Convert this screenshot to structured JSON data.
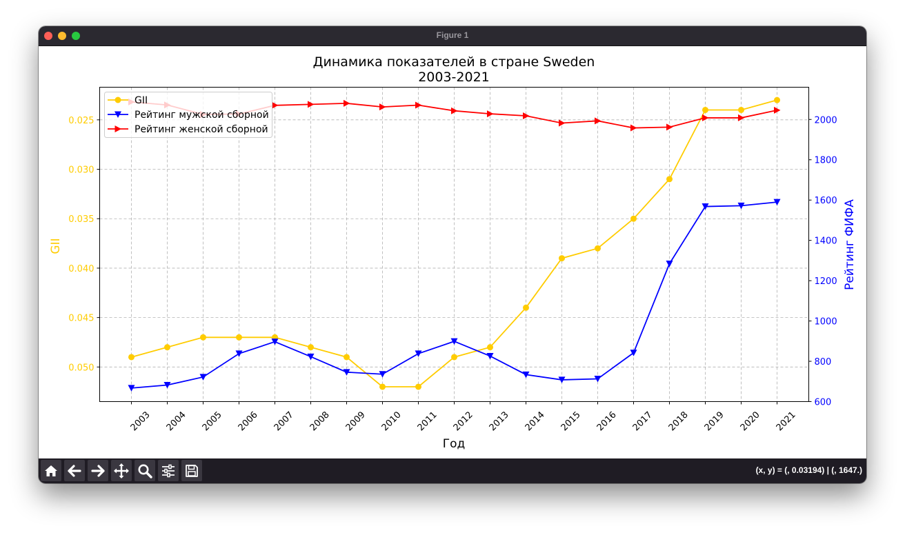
{
  "window": {
    "title": "Figure 1"
  },
  "toolbar": {
    "buttons": [
      "home-icon",
      "back-arrow-icon",
      "forward-arrow-icon",
      "pan-icon",
      "zoom-icon",
      "configure-subplots-icon",
      "save-icon"
    ],
    "coords": "(x, y) = (, 0.03194) | (, 1647.)"
  },
  "chart_data": {
    "type": "line",
    "title": "Динамика показателей в стране Sweden",
    "subtitle": "2003-2021",
    "xlabel": "Год",
    "ylabel_left": "GII",
    "ylabel_right": "Рейтинг ФИФА",
    "categories": [
      "2003",
      "2004",
      "2005",
      "2006",
      "2007",
      "2008",
      "2009",
      "2010",
      "2011",
      "2012",
      "2013",
      "2014",
      "2015",
      "2016",
      "2017",
      "2018",
      "2019",
      "2020",
      "2021"
    ],
    "left_axis": {
      "inverted": true,
      "ylim": [
        0.0535,
        0.0217
      ],
      "ticks": [
        0.025,
        0.03,
        0.035,
        0.04,
        0.045,
        0.05
      ],
      "tick_labels": [
        "0.025",
        "0.030",
        "0.035",
        "0.040",
        "0.045",
        "0.050"
      ],
      "color": "#ffcc00"
    },
    "right_axis": {
      "ylim": [
        600,
        2160
      ],
      "ticks": [
        600,
        800,
        1000,
        1200,
        1400,
        1600,
        1800,
        2000
      ],
      "tick_labels": [
        "600",
        "800",
        "1000",
        "1200",
        "1400",
        "1600",
        "1800",
        "2000"
      ],
      "color": "#0000ff"
    },
    "grid": true,
    "legend_position": "top-left",
    "series": [
      {
        "name": "GII",
        "axis": "left",
        "color": "#ffcc00",
        "marker": "circle",
        "values": [
          0.049,
          0.048,
          0.047,
          0.047,
          0.047,
          0.048,
          0.049,
          0.052,
          0.052,
          0.049,
          0.048,
          0.044,
          0.039,
          0.038,
          0.035,
          0.031,
          0.024,
          0.024,
          0.023
        ]
      },
      {
        "name": "Рейтинг мужской сборной",
        "axis": "right",
        "color": "#0000ff",
        "marker": "triangle-down",
        "values": [
          667,
          682,
          722,
          838,
          897,
          823,
          746,
          736,
          838,
          899,
          826,
          734,
          708,
          713,
          842,
          1284,
          1568,
          1572,
          1590
        ]
      },
      {
        "name": "Рейтинг женской сборной",
        "axis": "right",
        "color": "#ff0000",
        "marker": "triangle-right",
        "values": [
          2087,
          2072,
          2025,
          2027,
          2070,
          2075,
          2080,
          2062,
          2071,
          2043,
          2028,
          2018,
          1982,
          1993,
          1958,
          1962,
          2008,
          2008,
          2046
        ]
      }
    ]
  }
}
